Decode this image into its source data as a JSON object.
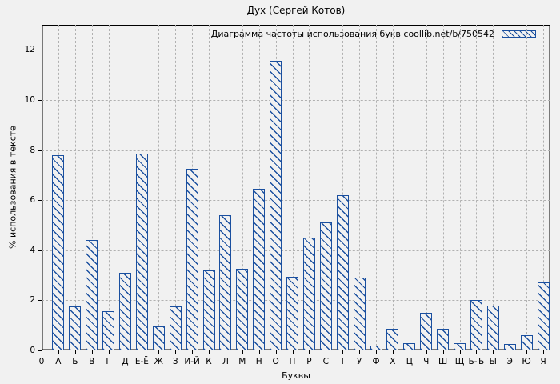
{
  "chart_data": {
    "type": "bar",
    "title": "Дух (Сергей Котов)",
    "legend": "Диаграмма частоты использования букв coollib.net/b/750542",
    "legend_position": "top-right-inside",
    "xlabel": "Буквы",
    "ylabel": "% использования в тексте",
    "origin_tick_label": "0",
    "categories": [
      "А",
      "Б",
      "В",
      "Г",
      "Д",
      "Е-Ё",
      "Ж",
      "З",
      "И-Й",
      "К",
      "Л",
      "М",
      "Н",
      "О",
      "П",
      "Р",
      "С",
      "Т",
      "У",
      "Ф",
      "Х",
      "Ц",
      "Ч",
      "Ш",
      "Щ",
      "Ь-Ъ",
      "Ы",
      "Э",
      "Ю",
      "Я"
    ],
    "values": [
      7.8,
      1.75,
      4.4,
      1.55,
      3.1,
      7.85,
      0.95,
      1.75,
      7.25,
      3.2,
      5.4,
      3.25,
      6.45,
      11.55,
      2.95,
      4.5,
      5.1,
      6.2,
      2.9,
      0.2,
      0.85,
      0.3,
      1.5,
      0.85,
      0.3,
      2.0,
      1.8,
      0.25,
      0.6,
      2.7
    ],
    "yticks": [
      0,
      2,
      4,
      6,
      8,
      10,
      12
    ],
    "ylim": [
      0,
      13
    ],
    "grid": true,
    "bar_hatch": "diagonal-backslash",
    "colors": {
      "bar": "#1a4f9f",
      "grid": "#b0b0b0",
      "background": "#f1f1f1",
      "axis": "#000000",
      "text": "#000000"
    }
  }
}
